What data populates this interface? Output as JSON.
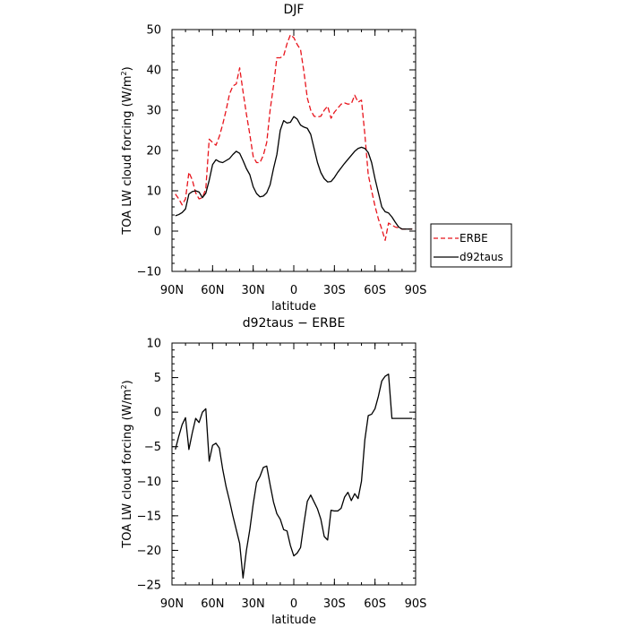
{
  "chart_data": [
    {
      "type": "line",
      "title": "DJF",
      "xlabel": "latitude",
      "ylabel": "TOA LW cloud forcing (W/m",
      "ylabel_sup": "2",
      "ylabel_end": ")",
      "xlim": [
        -90,
        90
      ],
      "ylim": [
        -10,
        50
      ],
      "xticks": [
        {
          "value": -90,
          "label": "90N"
        },
        {
          "value": -60,
          "label": "60N"
        },
        {
          "value": -30,
          "label": "30N"
        },
        {
          "value": 0,
          "label": "0"
        },
        {
          "value": 30,
          "label": "30S"
        },
        {
          "value": 60,
          "label": "60S"
        },
        {
          "value": 90,
          "label": "90S"
        }
      ],
      "yticks": [
        -10,
        0,
        10,
        20,
        30,
        40,
        50
      ],
      "x": [
        -87.5,
        -85,
        -82.5,
        -80,
        -77.5,
        -75,
        -72.5,
        -70,
        -67.5,
        -65,
        -62.5,
        -60,
        -57.5,
        -55,
        -52.5,
        -50,
        -47.5,
        -45,
        -42.5,
        -40,
        -37.5,
        -35,
        -32.5,
        -30,
        -27.5,
        -25,
        -22.5,
        -20,
        -17.5,
        -15,
        -12.5,
        -10,
        -7.5,
        -5,
        -2.5,
        0,
        2.5,
        5,
        7.5,
        10,
        12.5,
        15,
        17.5,
        20,
        22.5,
        25,
        27.5,
        30,
        32.5,
        35,
        37.5,
        40,
        42.5,
        45,
        47.5,
        50,
        52.5,
        55,
        57.5,
        60,
        62.5,
        65,
        67.5,
        70,
        72.5,
        75,
        77.5,
        80,
        82.5,
        85,
        87.5
      ],
      "series": [
        {
          "name": "ERBE",
          "color": "#e8141c",
          "dash": true,
          "values": [
            9.2,
            8.0,
            6.5,
            8.0,
            14.6,
            12.7,
            9.5,
            8.0,
            8.3,
            10.5,
            22.8,
            22.0,
            21.3,
            23.5,
            26.5,
            30.0,
            34.0,
            36.0,
            36.5,
            40.5,
            34.6,
            29.0,
            24.0,
            18.5,
            17.0,
            17.0,
            18.8,
            22.0,
            30.0,
            36.0,
            43.0,
            43.0,
            43.5,
            46.5,
            48.7,
            48.0,
            46.3,
            45.0,
            39.5,
            33.0,
            30.0,
            28.5,
            28.3,
            28.5,
            30.0,
            31.0,
            28.0,
            29.5,
            30.5,
            31.5,
            31.8,
            31.5,
            31.6,
            33.7,
            32.0,
            32.5,
            24.0,
            14.0,
            10.0,
            6.2,
            3.0,
            0.5,
            -2.3,
            2.0,
            1.5,
            1.0,
            0.8,
            0.5,
            0.5,
            0.5,
            0.5
          ]
        },
        {
          "name": "d92taus",
          "color": "#000000",
          "dash": false,
          "values": [
            3.8,
            4.1,
            4.6,
            5.5,
            9.2,
            9.8,
            10.0,
            9.7,
            8.3,
            9.4,
            12.6,
            16.5,
            17.7,
            17.2,
            17.0,
            17.5,
            18.0,
            19.0,
            19.8,
            19.3,
            17.5,
            15.5,
            14.0,
            11.0,
            9.3,
            8.5,
            8.7,
            9.5,
            11.5,
            15.5,
            19.0,
            25.0,
            27.4,
            26.8,
            27.0,
            28.4,
            27.8,
            26.3,
            25.8,
            25.5,
            24.0,
            20.5,
            17.0,
            14.5,
            13.0,
            12.2,
            12.3,
            13.3,
            14.6,
            15.7,
            16.8,
            17.8,
            18.8,
            19.8,
            20.5,
            20.8,
            20.5,
            19.5,
            17.0,
            13.0,
            9.5,
            6.0,
            4.8,
            4.5,
            3.5,
            2.2,
            1.0,
            0.5,
            0.5,
            0.5,
            0.5
          ]
        }
      ],
      "legend": "right"
    },
    {
      "type": "line",
      "title": "d92taus − ERBE",
      "xlabel": "latitude",
      "ylabel": "TOA LW cloud forcing (W/m",
      "ylabel_sup": "2",
      "ylabel_end": ")",
      "xlim": [
        -90,
        90
      ],
      "ylim": [
        -25,
        10
      ],
      "xticks": [
        {
          "value": -90,
          "label": "90N"
        },
        {
          "value": -60,
          "label": "60N"
        },
        {
          "value": -30,
          "label": "30N"
        },
        {
          "value": 0,
          "label": "0"
        },
        {
          "value": 30,
          "label": "30S"
        },
        {
          "value": 60,
          "label": "60S"
        },
        {
          "value": 90,
          "label": "90S"
        }
      ],
      "yticks": [
        -25,
        -20,
        -15,
        -10,
        -5,
        0,
        5,
        10
      ],
      "x": [
        -87.5,
        -85,
        -82.5,
        -80,
        -77.5,
        -75,
        -72.5,
        -70,
        -67.5,
        -65,
        -62.5,
        -60,
        -57.5,
        -55,
        -52.5,
        -50,
        -47.5,
        -45,
        -42.5,
        -40,
        -37.5,
        -35,
        -32.5,
        -30,
        -27.5,
        -25,
        -22.5,
        -20,
        -17.5,
        -15,
        -12.5,
        -10,
        -7.5,
        -5,
        -2.5,
        0,
        2.5,
        5,
        7.5,
        10,
        12.5,
        15,
        17.5,
        20,
        22.5,
        25,
        27.5,
        30,
        32.5,
        35,
        37.5,
        40,
        42.5,
        45,
        47.5,
        50,
        52.5,
        55,
        57.5,
        60,
        62.5,
        65,
        67.5,
        70,
        72.5,
        75,
        77.5,
        80,
        82.5,
        85,
        87.5
      ],
      "series": [
        {
          "name": "",
          "color": "#000000",
          "dash": false,
          "values": [
            -5.4,
            -3.5,
            -1.8,
            -0.8,
            -5.4,
            -3.0,
            -0.9,
            -1.5,
            0.0,
            0.5,
            -7.1,
            -4.8,
            -4.5,
            -5.2,
            -8.3,
            -10.8,
            -12.8,
            -15.0,
            -17.0,
            -19.0,
            -24.0,
            -20.0,
            -17.0,
            -13.3,
            -10.2,
            -9.3,
            -8.0,
            -7.8,
            -10.5,
            -13.0,
            -14.7,
            -15.5,
            -17.0,
            -17.2,
            -19.3,
            -20.8,
            -20.4,
            -19.6,
            -16.1,
            -12.9,
            -12.0,
            -13.0,
            -14.0,
            -15.5,
            -18.0,
            -18.5,
            -14.2,
            -14.3,
            -14.3,
            -13.9,
            -12.3,
            -11.6,
            -12.8,
            -11.8,
            -12.5,
            -10.0,
            -4.0,
            -0.5,
            -0.3,
            0.5,
            2.3,
            4.5,
            5.2,
            5.5,
            -0.9,
            -0.9,
            -0.9,
            -0.9,
            -0.9,
            -0.9,
            -0.9
          ]
        }
      ]
    }
  ]
}
